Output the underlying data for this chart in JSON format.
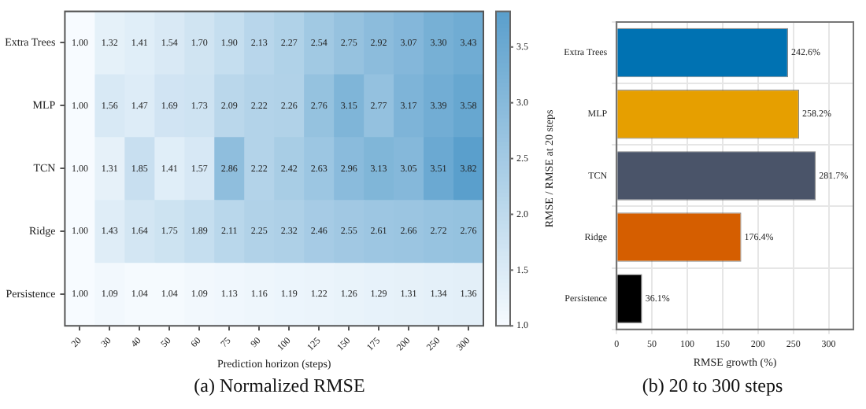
{
  "chart_data": [
    {
      "type": "heatmap",
      "xlabel": "Prediction horizon (steps)",
      "clabel": "RMSE / RMSE at 20 steps",
      "annotations": [
        "(a) Normalized RMSE"
      ],
      "categories": [
        "20",
        "30",
        "40",
        "50",
        "60",
        "75",
        "90",
        "100",
        "125",
        "150",
        "175",
        "200",
        "250",
        "300"
      ],
      "y_categories": [
        "Extra Trees",
        "MLP",
        "TCN",
        "Ridge",
        "Persistence"
      ],
      "cells": [
        [
          1.0,
          1.32,
          1.41,
          1.54,
          1.7,
          1.9,
          2.13,
          2.27,
          2.54,
          2.75,
          2.92,
          3.07,
          3.3,
          3.43
        ],
        [
          1.0,
          1.56,
          1.47,
          1.69,
          1.73,
          2.09,
          2.22,
          2.26,
          2.76,
          3.15,
          2.77,
          3.17,
          3.39,
          3.58
        ],
        [
          1.0,
          1.31,
          1.85,
          1.41,
          1.57,
          2.86,
          2.22,
          2.42,
          2.63,
          2.96,
          3.13,
          3.05,
          3.51,
          3.82
        ],
        [
          1.0,
          1.43,
          1.64,
          1.75,
          1.89,
          2.11,
          2.25,
          2.32,
          2.46,
          2.55,
          2.61,
          2.66,
          2.72,
          2.76
        ],
        [
          1.0,
          1.09,
          1.04,
          1.04,
          1.09,
          1.13,
          1.16,
          1.19,
          1.22,
          1.26,
          1.29,
          1.31,
          1.34,
          1.36
        ]
      ],
      "cell_labels": [
        [
          "1.00",
          "1.32",
          "1.41",
          "1.54",
          "1.70",
          "1.90",
          "2.13",
          "2.27",
          "2.54",
          "2.75",
          "2.92",
          "3.07",
          "3.30",
          "3.43"
        ],
        [
          "1.00",
          "1.56",
          "1.47",
          "1.69",
          "1.73",
          "2.09",
          "2.22",
          "2.26",
          "2.76",
          "3.15",
          "2.77",
          "3.17",
          "3.39",
          "3.58"
        ],
        [
          "1.00",
          "1.31",
          "1.85",
          "1.41",
          "1.57",
          "2.86",
          "2.22",
          "2.42",
          "2.63",
          "2.96",
          "3.13",
          "3.05",
          "3.51",
          "3.82"
        ],
        [
          "1.00",
          "1.43",
          "1.64",
          "1.75",
          "1.89",
          "2.11",
          "2.25",
          "2.32",
          "2.46",
          "2.55",
          "2.61",
          "2.66",
          "2.72",
          "2.76"
        ],
        [
          "1.00",
          "1.09",
          "1.04",
          "1.04",
          "1.09",
          "1.13",
          "1.16",
          "1.19",
          "1.22",
          "1.26",
          "1.29",
          "1.31",
          "1.34",
          "1.36"
        ]
      ],
      "clim": [
        1.0,
        3.82
      ],
      "cticks": [
        {
          "value": 1.0,
          "label": "1.0"
        },
        {
          "value": 1.5,
          "label": "1.5"
        },
        {
          "value": 2.0,
          "label": "2.0"
        },
        {
          "value": 2.5,
          "label": "2.5"
        },
        {
          "value": 3.0,
          "label": "3.0"
        },
        {
          "value": 3.5,
          "label": "3.5"
        }
      ]
    },
    {
      "type": "bar",
      "orientation": "horizontal",
      "xlabel": "RMSE growth (%)",
      "annotations": [
        "(b) 20 to 300 steps"
      ],
      "categories": [
        "Extra Trees",
        "MLP",
        "TCN",
        "Ridge",
        "Persistence"
      ],
      "values": [
        242.6,
        258.2,
        281.7,
        176.4,
        36.1
      ],
      "colors": [
        "#0072b2",
        "#e69f00",
        "#4a5469",
        "#d55e00",
        "#000000"
      ],
      "value_labels": [
        "242.6%",
        "258.2%",
        "281.7%",
        "176.4%",
        "36.1%"
      ],
      "xlim": [
        0,
        335
      ],
      "xticks": [
        0,
        50,
        100,
        150,
        200,
        250,
        300
      ],
      "grid": true
    }
  ]
}
